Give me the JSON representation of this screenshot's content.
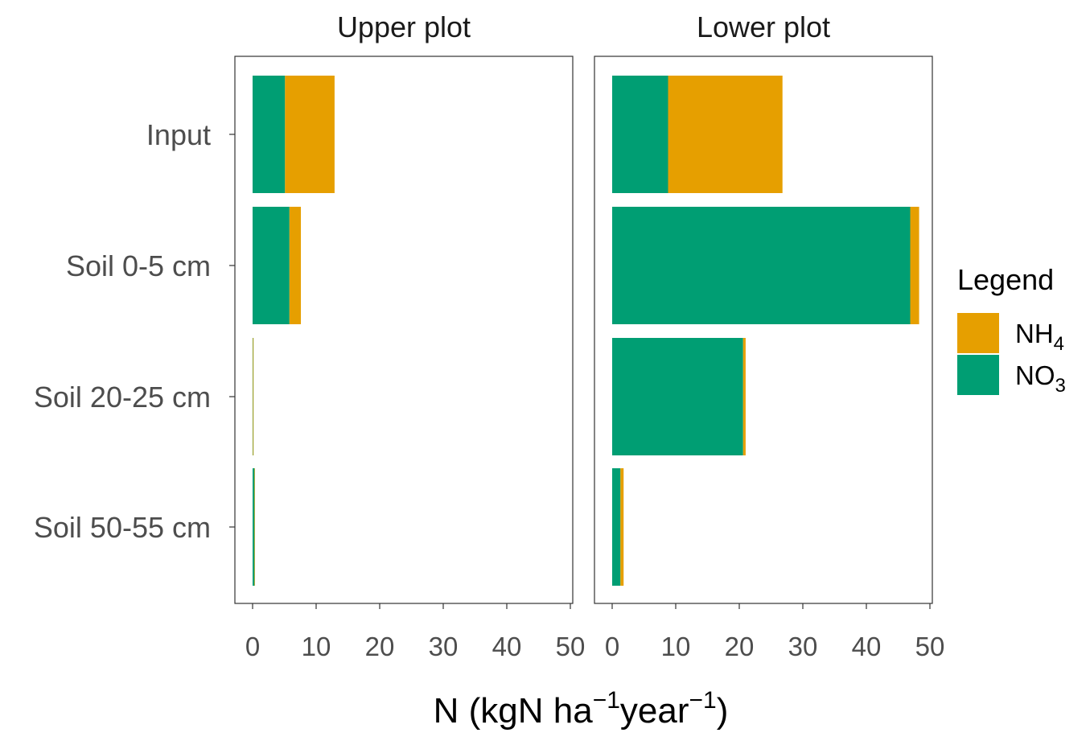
{
  "chart_data": {
    "type": "bar",
    "orientation": "horizontal",
    "stacked": true,
    "categories": [
      "Input",
      "Soil 0-5 cm",
      "Soil 20-25 cm",
      "Soil 50-55 cm"
    ],
    "facets": [
      {
        "title": "Upper plot",
        "series": [
          {
            "name": "NO3",
            "values": [
              5.1,
              5.8,
              0.05,
              0.3
            ]
          },
          {
            "name": "NH4",
            "values": [
              7.8,
              1.8,
              0.1,
              0.05
            ]
          }
        ]
      },
      {
        "title": "Lower plot",
        "series": [
          {
            "name": "NO3",
            "values": [
              8.8,
              46.9,
              20.6,
              1.3
            ]
          },
          {
            "name": "NH4",
            "values": [
              18.0,
              1.4,
              0.4,
              0.5
            ]
          }
        ]
      }
    ],
    "xlim": [
      0,
      50
    ],
    "xticks": [
      "0",
      "10",
      "20",
      "30",
      "40",
      "50"
    ],
    "xlabel": "N (kgN ha",
    "xlabel_sup1": "−1",
    "xlabel_mid": "year",
    "xlabel_sup2": "−1",
    "xlabel_end": ")",
    "legend": {
      "title": "Legend",
      "position": "right",
      "entries": [
        {
          "key": "NH4",
          "base": "NH",
          "sub": "4",
          "color": "#E69F00"
        },
        {
          "key": "NO3",
          "base": "NO",
          "sub": "3",
          "color": "#009E73"
        }
      ]
    },
    "colors": {
      "NH4": "#E69F00",
      "NO3": "#009E73"
    },
    "grid": false
  }
}
